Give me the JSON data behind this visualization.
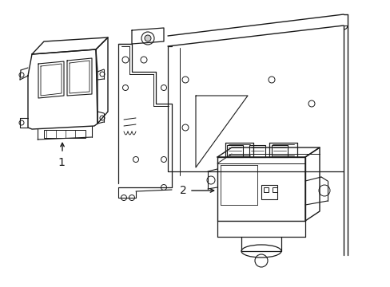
{
  "bg_color": "#ffffff",
  "line_color": "#1a1a1a",
  "line_width": 1.0,
  "fig_width": 4.89,
  "fig_height": 3.6,
  "dpi": 100,
  "label1": "1",
  "label2": "2"
}
